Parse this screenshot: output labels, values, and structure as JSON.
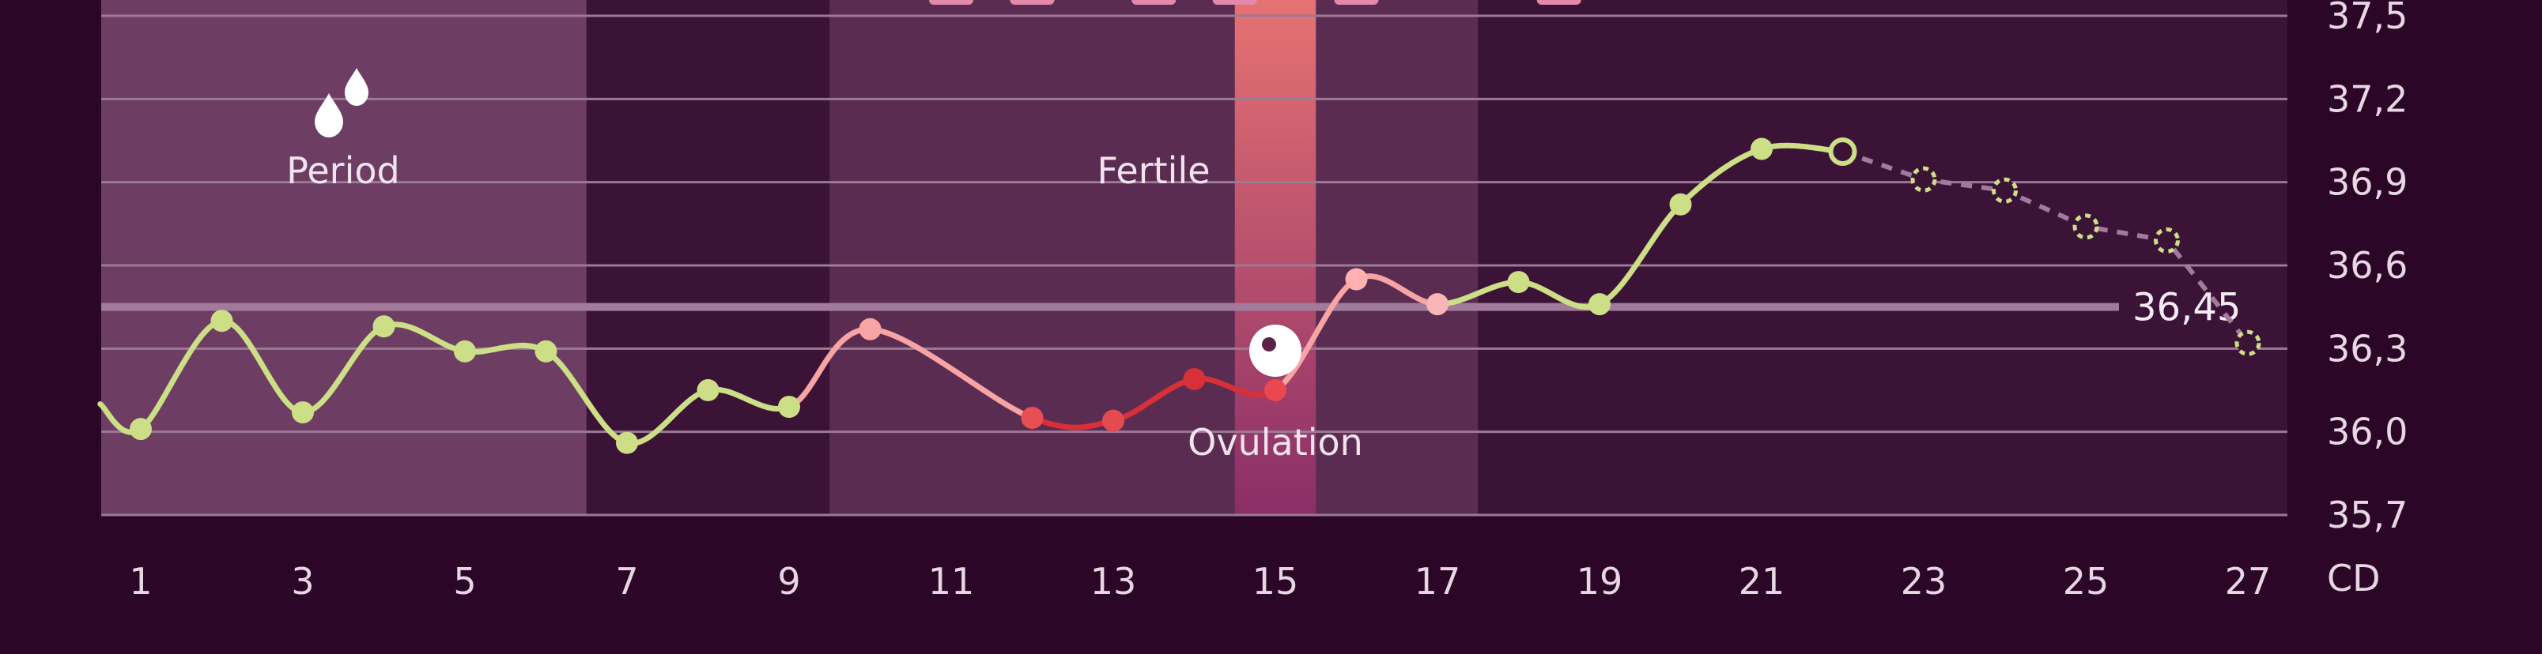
{
  "chart_data": {
    "type": "line",
    "title": "",
    "xlabel": "CD",
    "ylabel": "",
    "xlim": [
      1,
      27
    ],
    "ylim": [
      35.7,
      37.5
    ],
    "x_ticks": [
      "1",
      "3",
      "5",
      "7",
      "9",
      "11",
      "13",
      "15",
      "17",
      "19",
      "21",
      "23",
      "25",
      "27"
    ],
    "y_ticks": [
      "37,5",
      "37,2",
      "36,9",
      "36,6",
      "36,3",
      "36,0",
      "35,7"
    ],
    "grid": true,
    "bands": [
      {
        "name": "period",
        "label": "Period",
        "from_day": 1,
        "to_day": 6
      },
      {
        "name": "fertile",
        "label": "Fertile",
        "from_day": 10,
        "to_day": 17
      },
      {
        "name": "ovulation",
        "label": "Ovulation",
        "from_day": 15,
        "to_day": 15
      }
    ],
    "coverline": {
      "value": 36.45,
      "label": "36,45"
    },
    "series": [
      {
        "role": "measured",
        "x": [
          0.5,
          1,
          2,
          3,
          4,
          5,
          6,
          7,
          8,
          9,
          10,
          12,
          13,
          14,
          15,
          16,
          17,
          18,
          19,
          20,
          21,
          22
        ],
        "y": [
          36.1,
          36.01,
          36.4,
          36.07,
          36.38,
          36.29,
          36.29,
          35.96,
          36.15,
          36.09,
          36.37,
          36.05,
          36.04,
          36.19,
          36.15,
          36.55,
          36.46,
          36.54,
          36.46,
          36.82,
          37.02,
          37.01
        ]
      },
      {
        "role": "predicted",
        "x": [
          22,
          23,
          24,
          25,
          26,
          27
        ],
        "y": [
          37.01,
          36.91,
          36.87,
          36.74,
          36.69,
          36.32
        ]
      }
    ],
    "point_colors": [
      "#cddf86",
      "#cddf86",
      "#cddf86",
      "#cddf86",
      "#cddf86",
      "#cddf86",
      "#cddf86",
      "#cddf86",
      "#cddf86",
      "#cddf86",
      "#f7a4a4",
      "#ea4e55",
      "#e34b50",
      "#d73038",
      "#e8484e",
      "#ffb0b0",
      "#f7b5b5",
      "#cddf86",
      "#cddf86",
      "#cddf86",
      "#cddf86",
      "#cddf86"
    ],
    "colors": {
      "background": "#2c0626",
      "plot_bg": "#3a1336",
      "period_band": "#6d3d63",
      "fertile_band": "#5b2c51",
      "ovulation_top": "#e67272",
      "ovulation_bottom": "#8a2e68",
      "line_green": "#cddf86",
      "line_pink": "#f7a4a4",
      "line_red": "#d73038",
      "coverline": "#a27a9c",
      "grid": "#9b7a95",
      "tag": "#e38aac"
    },
    "icons": [
      "droplets-icon",
      "ovulation-egg-icon"
    ]
  }
}
